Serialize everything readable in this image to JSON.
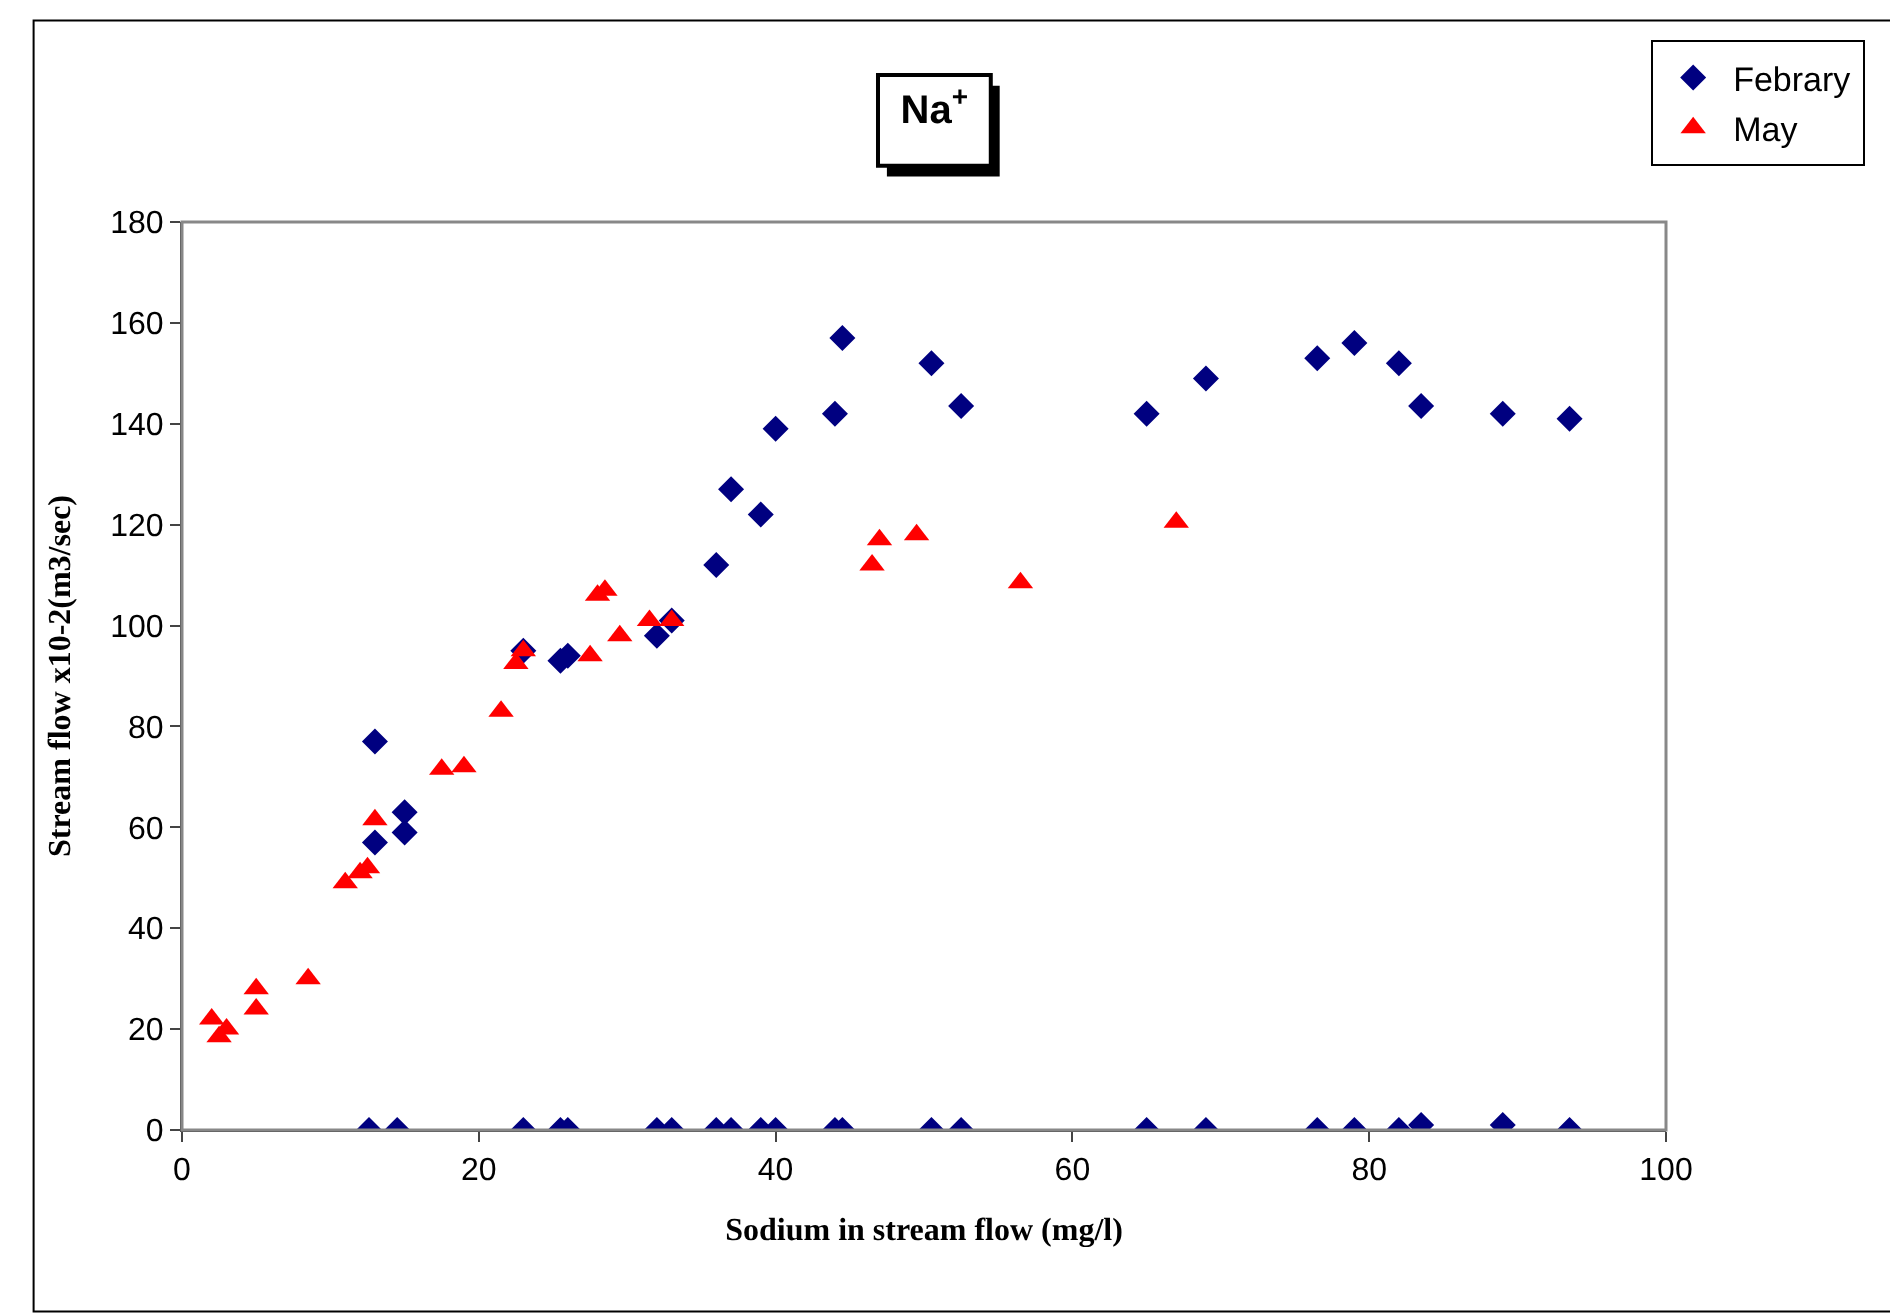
{
  "chart_data": {
    "type": "scatter",
    "title": "Na$^{+}$",
    "xlabel": "Sodium in stream flow (mg/l)",
    "ylabel": "Stream flow x10-2(m3/sec)",
    "series": [
      {
        "name": "Febrary",
        "color": "#000080",
        "marker": "diamond",
        "x": [
          13,
          13,
          15,
          15,
          23,
          25.5,
          26,
          32,
          33,
          36,
          37,
          39,
          40,
          44,
          44.5,
          50.5,
          52.5,
          65,
          69,
          76.5,
          79,
          82,
          83.5,
          89,
          93.5,
          12.6,
          14.5,
          23,
          25.5,
          26,
          32,
          33,
          36,
          37,
          39,
          40,
          44,
          44.5,
          50.5,
          52.5,
          65,
          69,
          76.5,
          79,
          82,
          83.5,
          89,
          93.5
        ],
        "values": [
          77,
          57,
          63,
          59,
          95,
          93,
          94,
          98,
          101,
          112,
          127,
          122,
          139,
          142,
          157,
          152,
          143.5,
          142,
          149,
          153,
          156,
          152,
          143.5,
          142,
          141,
          0,
          0,
          0,
          0,
          0,
          0,
          0,
          0,
          0,
          0,
          0,
          0,
          0,
          0,
          0,
          0,
          0,
          0,
          0,
          0,
          1,
          1,
          0
        ]
      },
      {
        "name": "May",
        "color": "#ff0000",
        "marker": "triangle",
        "x": [
          2,
          2.5,
          3,
          5,
          5,
          8.5,
          11,
          12,
          12.5,
          13,
          17.5,
          19,
          21.5,
          22.5,
          23,
          27.5,
          28,
          28.5,
          29.5,
          31.5,
          33,
          46.5,
          47,
          49.5,
          56.5,
          67
        ],
        "values": [
          22,
          18.5,
          20,
          24,
          28,
          30,
          49,
          51,
          52,
          61.5,
          71.5,
          72,
          83,
          92.5,
          95,
          94,
          106,
          107,
          98,
          101,
          101,
          112,
          117,
          118,
          108.5,
          120.5
        ]
      }
    ],
    "xlim": [
      0,
      100
    ],
    "xticks": [
      0,
      20,
      40,
      60,
      80,
      100
    ],
    "ylim": [
      0,
      180
    ],
    "yticks": [
      0,
      20,
      40,
      60,
      80,
      100,
      120,
      140,
      160,
      180
    ],
    "legend": "top right"
  }
}
